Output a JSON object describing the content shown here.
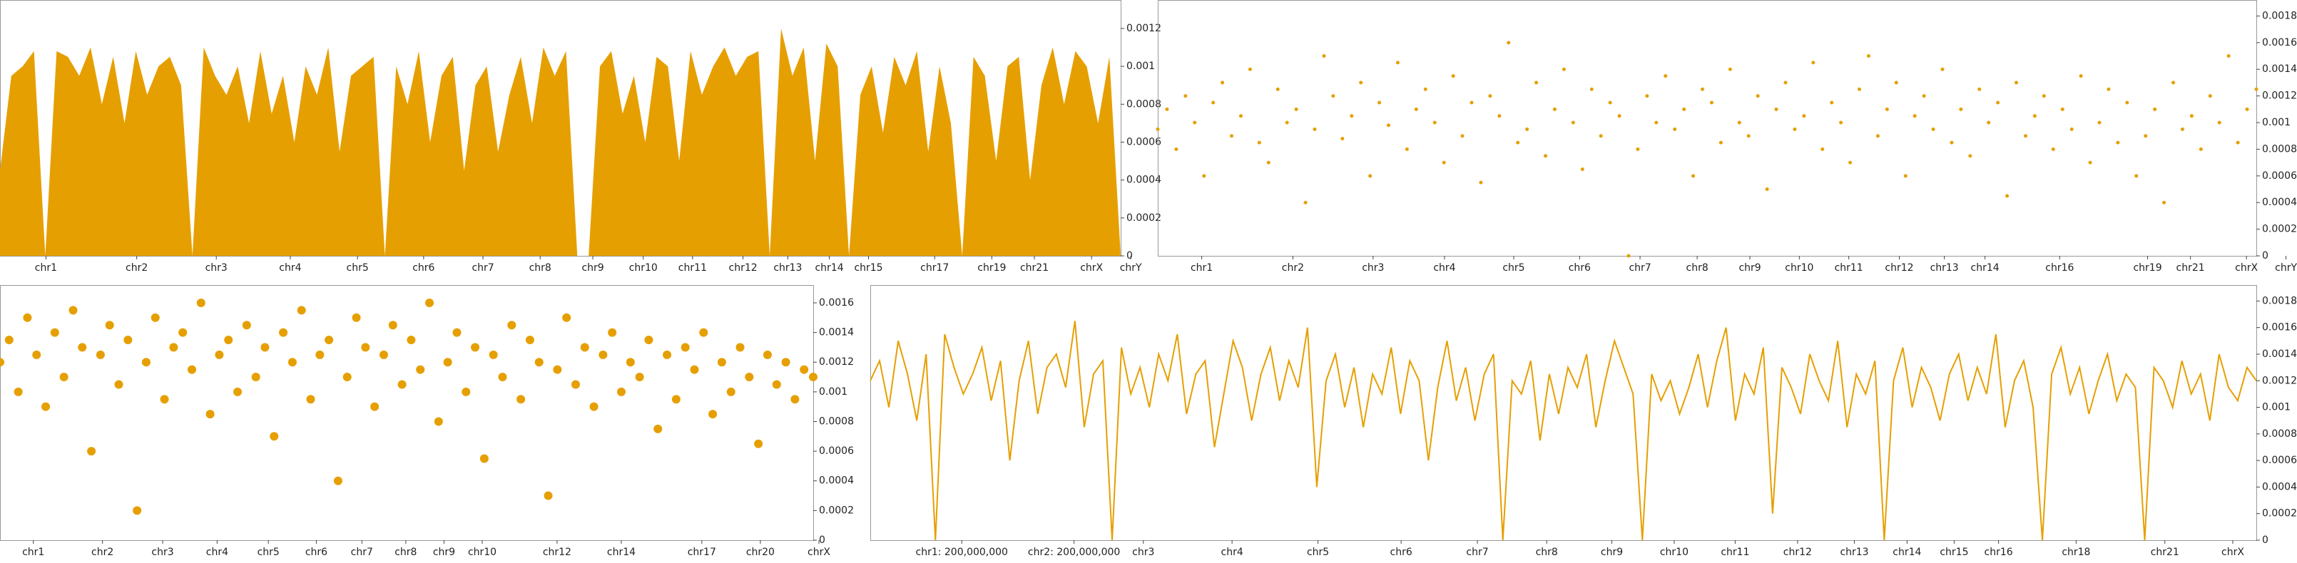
{
  "chart_data": [
    {
      "type": "area",
      "color": "#e69f00",
      "xlim": [
        0,
        100
      ],
      "ylim": [
        0,
        0.00135
      ],
      "yticks": [
        0,
        0.0002,
        0.0004,
        0.0006,
        0.0008,
        0.001,
        0.0012
      ],
      "xticks": [
        {
          "value": 4.1,
          "label": "chr1"
        },
        {
          "value": 12.2,
          "label": "chr2"
        },
        {
          "value": 19.3,
          "label": "chr3"
        },
        {
          "value": 25.9,
          "label": "chr4"
        },
        {
          "value": 31.9,
          "label": "chr5"
        },
        {
          "value": 37.8,
          "label": "chr6"
        },
        {
          "value": 43.1,
          "label": "chr7"
        },
        {
          "value": 48.2,
          "label": "chr8"
        },
        {
          "value": 52.9,
          "label": "chr9"
        },
        {
          "value": 57.4,
          "label": "chr10"
        },
        {
          "value": 61.8,
          "label": "chr11"
        },
        {
          "value": 66.3,
          "label": "chr12"
        },
        {
          "value": 70.3,
          "label": "chr13"
        },
        {
          "value": 74,
          "label": "chr14"
        },
        {
          "value": 77.5,
          "label": "chr15"
        },
        {
          "value": 83.4,
          "label": "chr17"
        },
        {
          "value": 88.5,
          "label": "chr19"
        },
        {
          "value": 92.3,
          "label": "chr21"
        },
        {
          "value": 97.4,
          "label": "chrX"
        },
        {
          "value": 100.9,
          "label": "chrY"
        }
      ],
      "values": [
        0.00045,
        0.00095,
        0.001,
        0.00108,
        0,
        0.00108,
        0.00105,
        0.00095,
        0.0011,
        0.0008,
        0.00105,
        0.0007,
        0.00108,
        0.00085,
        0.001,
        0.00105,
        0.0009,
        0,
        0.0011,
        0.00095,
        0.00085,
        0.001,
        0.0007,
        0.00108,
        0.00075,
        0.00095,
        0.0006,
        0.001,
        0.00085,
        0.0011,
        0.00055,
        0.00095,
        0.001,
        0.00105,
        0,
        0.001,
        0.0008,
        0.00108,
        0.0006,
        0.00095,
        0.00105,
        0.00045,
        0.0009,
        0.001,
        0.00055,
        0.00085,
        0.00105,
        0.0007,
        0.0011,
        0.00095,
        0.00108,
        0,
        0,
        0.001,
        0.00108,
        0.00075,
        0.00095,
        0.0006,
        0.00105,
        0.001,
        0.0005,
        0.00108,
        0.00085,
        0.001,
        0.0011,
        0.00095,
        0.00105,
        0.00108,
        0,
        0.0012,
        0.00095,
        0.0011,
        0.0005,
        0.00112,
        0.001,
        0,
        0.00085,
        0.001,
        0.00065,
        0.00105,
        0.0009,
        0.00108,
        0.00055,
        0.001,
        0.0007,
        0,
        0.00105,
        0.00095,
        0.0005,
        0.001,
        0.00105,
        0.0004,
        0.0009,
        0.0011,
        0.0008,
        0.00108,
        0.001,
        0.0007,
        0.00105,
        0
      ]
    },
    {
      "type": "scatter",
      "color": "#e69f00",
      "xlim": [
        0,
        100
      ],
      "ylim": [
        0,
        0.00192
      ],
      "yticks": [
        0,
        0.0002,
        0.0004,
        0.0006,
        0.0008,
        0.001,
        0.0012,
        0.0014,
        0.0016,
        0.0018
      ],
      "xticks": [
        {
          "value": 4,
          "label": "chr1"
        },
        {
          "value": 12.3,
          "label": "chr2"
        },
        {
          "value": 19.6,
          "label": "chr3"
        },
        {
          "value": 26.1,
          "label": "chr4"
        },
        {
          "value": 32.4,
          "label": "chr5"
        },
        {
          "value": 38.4,
          "label": "chr6"
        },
        {
          "value": 43.9,
          "label": "chr7"
        },
        {
          "value": 49.1,
          "label": "chr8"
        },
        {
          "value": 53.9,
          "label": "chr9"
        },
        {
          "value": 58.4,
          "label": "chr10"
        },
        {
          "value": 62.9,
          "label": "chr11"
        },
        {
          "value": 67.5,
          "label": "chr12"
        },
        {
          "value": 71.6,
          "label": "chr13"
        },
        {
          "value": 75.3,
          "label": "chr14"
        },
        {
          "value": 82.1,
          "label": "chr16"
        },
        {
          "value": 90.1,
          "label": "chr19"
        },
        {
          "value": 94,
          "label": "chr21"
        },
        {
          "value": 99.1,
          "label": "chrX"
        },
        {
          "value": 102.7,
          "label": "chrY"
        }
      ],
      "values": [
        0.00095,
        0.0011,
        0.0008,
        0.0012,
        0.001,
        0.0006,
        0.00115,
        0.0013,
        0.0009,
        0.00105,
        0.0014,
        0.00085,
        0.0007,
        0.00125,
        0.001,
        0.0011,
        0.0004,
        0.00095,
        0.0015,
        0.0012,
        0.00088,
        0.00105,
        0.0013,
        0.0006,
        0.00115,
        0.00098,
        0.00145,
        0.0008,
        0.0011,
        0.00125,
        0.001,
        0.0007,
        0.00135,
        0.0009,
        0.00115,
        0.00055,
        0.0012,
        0.00105,
        0.0016,
        0.00085,
        0.00095,
        0.0013,
        0.00075,
        0.0011,
        0.0014,
        0.001,
        0.00065,
        0.00125,
        0.0009,
        0.00115,
        0.00105,
        0,
        0.0008,
        0.0012,
        0.001,
        0.00135,
        0.00095,
        0.0011,
        0.0006,
        0.00125,
        0.00115,
        0.00085,
        0.0014,
        0.001,
        0.0009,
        0.0012,
        0.0005,
        0.0011,
        0.0013,
        0.00095,
        0.00105,
        0.00145,
        0.0008,
        0.00115,
        0.001,
        0.0007,
        0.00125,
        0.0015,
        0.0009,
        0.0011,
        0.0013,
        0.0006,
        0.00105,
        0.0012,
        0.00095,
        0.0014,
        0.00085,
        0.0011,
        0.00075,
        0.00125,
        0.001,
        0.00115,
        0.00045,
        0.0013,
        0.0009,
        0.00105,
        0.0012,
        0.0008,
        0.0011,
        0.00095,
        0.00135,
        0.0007,
        0.001,
        0.00125,
        0.00085,
        0.00115,
        0.0006,
        0.0009,
        0.0011,
        0.0004,
        0.0013,
        0.00095,
        0.00105,
        0.0008,
        0.0012,
        0.001,
        0.0015,
        0.00085,
        0.0011,
        0.00125
      ]
    },
    {
      "type": "scatter",
      "color": "#e69f00",
      "xlim": [
        0,
        100
      ],
      "ylim": [
        0,
        0.00172
      ],
      "big": true,
      "yticks": [
        0,
        0.0002,
        0.0004,
        0.0006,
        0.0008,
        0.001,
        0.0012,
        0.0014,
        0.0016
      ],
      "xticks": [
        {
          "value": 4.1,
          "label": "chr1"
        },
        {
          "value": 12.6,
          "label": "chr2"
        },
        {
          "value": 20,
          "label": "chr3"
        },
        {
          "value": 26.7,
          "label": "chr4"
        },
        {
          "value": 33,
          "label": "chr5"
        },
        {
          "value": 38.9,
          "label": "chr6"
        },
        {
          "value": 44.5,
          "label": "chr7"
        },
        {
          "value": 49.9,
          "label": "chr8"
        },
        {
          "value": 54.6,
          "label": "chr9"
        },
        {
          "value": 59.3,
          "label": "chr10"
        },
        {
          "value": 68.5,
          "label": "chr12"
        },
        {
          "value": 76.4,
          "label": "chr14"
        },
        {
          "value": 86.3,
          "label": "chr17"
        },
        {
          "value": 93.5,
          "label": "chr20"
        },
        {
          "value": 100.7,
          "label": "chrX"
        }
      ],
      "values": [
        0.0012,
        0.00135,
        0.001,
        0.0015,
        0.00125,
        0.0009,
        0.0014,
        0.0011,
        0.00155,
        0.0013,
        0.0006,
        0.00125,
        0.00145,
        0.00105,
        0.00135,
        0.0002,
        0.0012,
        0.0015,
        0.00095,
        0.0013,
        0.0014,
        0.00115,
        0.0016,
        0.00085,
        0.00125,
        0.00135,
        0.001,
        0.00145,
        0.0011,
        0.0013,
        0.0007,
        0.0014,
        0.0012,
        0.00155,
        0.00095,
        0.00125,
        0.00135,
        0.0004,
        0.0011,
        0.0015,
        0.0013,
        0.0009,
        0.00125,
        0.00145,
        0.00105,
        0.00135,
        0.00115,
        0.0016,
        0.0008,
        0.0012,
        0.0014,
        0.001,
        0.0013,
        0.00055,
        0.00125,
        0.0011,
        0.00145,
        0.00095,
        0.00135,
        0.0012,
        0.0003,
        0.00115,
        0.0015,
        0.00105,
        0.0013,
        0.0009,
        0.00125,
        0.0014,
        0.001,
        0.0012,
        0.0011,
        0.00135,
        0.00075,
        0.00125,
        0.00095,
        0.0013,
        0.00115,
        0.0014,
        0.00085,
        0.0012,
        0.001,
        0.0013,
        0.0011,
        0.00065,
        0.00125,
        0.00105,
        0.0012,
        0.00095,
        0.00115,
        0.0011
      ]
    },
    {
      "type": "line",
      "color": "#e69f00",
      "xlim": [
        0,
        100
      ],
      "ylim": [
        0,
        0.00192
      ],
      "yticks": [
        0,
        0.0002,
        0.0004,
        0.0006,
        0.0008,
        0.001,
        0.0012,
        0.0014,
        0.0016,
        0.0018
      ],
      "xticks": [
        {
          "value": 6.6,
          "label": "chr1: 200,000,000"
        },
        {
          "value": 14.7,
          "label": "chr2: 200,000,000"
        },
        {
          "value": 19.7,
          "label": "chr3"
        },
        {
          "value": 26.1,
          "label": "chr4"
        },
        {
          "value": 32.3,
          "label": "chr5"
        },
        {
          "value": 38.3,
          "label": "chr6"
        },
        {
          "value": 43.8,
          "label": "chr7"
        },
        {
          "value": 48.8,
          "label": "chr8"
        },
        {
          "value": 53.5,
          "label": "chr9"
        },
        {
          "value": 58,
          "label": "chr10"
        },
        {
          "value": 62.4,
          "label": "chr11"
        },
        {
          "value": 66.9,
          "label": "chr12"
        },
        {
          "value": 71,
          "label": "chr13"
        },
        {
          "value": 74.8,
          "label": "chr14"
        },
        {
          "value": 78.2,
          "label": "chr15"
        },
        {
          "value": 81.4,
          "label": "chr16"
        },
        {
          "value": 87,
          "label": "chr18"
        },
        {
          "value": 93.4,
          "label": "chr21"
        },
        {
          "value": 98.3,
          "label": "chrX"
        }
      ],
      "values": [
        0.0012,
        0.00135,
        0.001,
        0.0015,
        0.00125,
        0.0009,
        0.0014,
        0,
        0.00155,
        0.0013,
        0.0011,
        0.00125,
        0.00145,
        0.00105,
        0.00135,
        0.0006,
        0.0012,
        0.0015,
        0.00095,
        0.0013,
        0.0014,
        0.00115,
        0.00165,
        0.00085,
        0.00125,
        0.00135,
        0,
        0.00145,
        0.0011,
        0.0013,
        0.001,
        0.0014,
        0.0012,
        0.00155,
        0.00095,
        0.00125,
        0.00135,
        0.0007,
        0.0011,
        0.0015,
        0.0013,
        0.0009,
        0.00125,
        0.00145,
        0.00105,
        0.00135,
        0.00115,
        0.0016,
        0.0004,
        0.0012,
        0.0014,
        0.001,
        0.0013,
        0.00085,
        0.00125,
        0.0011,
        0.00145,
        0.00095,
        0.00135,
        0.0012,
        0.0006,
        0.00115,
        0.0015,
        0.00105,
        0.0013,
        0.0009,
        0.00125,
        0.0014,
        0,
        0.0012,
        0.0011,
        0.00135,
        0.00075,
        0.00125,
        0.00095,
        0.0013,
        0.00115,
        0.0014,
        0.00085,
        0.0012,
        0.0015,
        0.0013,
        0.0011,
        0,
        0.00125,
        0.00105,
        0.0012,
        0.00095,
        0.00115,
        0.0014,
        0.001,
        0.00135,
        0.0016,
        0.0009,
        0.00125,
        0.0011,
        0.00145,
        0.0002,
        0.0013,
        0.00115,
        0.00095,
        0.0014,
        0.0012,
        0.00105,
        0.0015,
        0.00085,
        0.00125,
        0.0011,
        0.00135,
        0,
        0.0012,
        0.00145,
        0.001,
        0.0013,
        0.00115,
        0.0009,
        0.00125,
        0.0014,
        0.00105,
        0.0013,
        0.0011,
        0.00155,
        0.00085,
        0.0012,
        0.00135,
        0.001,
        0,
        0.00125,
        0.00145,
        0.0011,
        0.0013,
        0.00095,
        0.0012,
        0.0014,
        0.00105,
        0.00125,
        0.00115,
        0,
        0.0013,
        0.0012,
        0.001,
        0.00135,
        0.0011,
        0.00125,
        0.0009,
        0.0014,
        0.00115,
        0.00105,
        0.0013,
        0.0012
      ]
    }
  ]
}
